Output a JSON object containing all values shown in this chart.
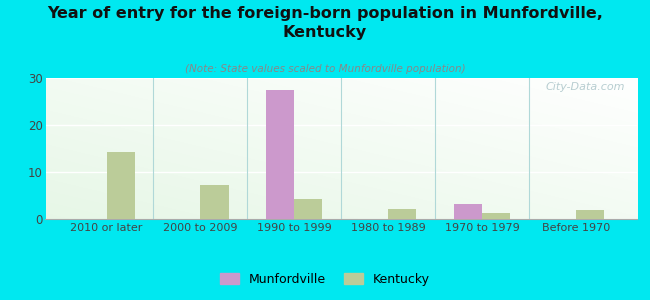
{
  "title": "Year of entry for the foreign-born population in Munfordville,\nKentucky",
  "subtitle": "(Note: State values scaled to Munfordville population)",
  "categories": [
    "2010 or later",
    "2000 to 2009",
    "1990 to 1999",
    "1980 to 1989",
    "1970 to 1979",
    "Before 1970"
  ],
  "munfordville": [
    0,
    0,
    27.5,
    0,
    3.2,
    0
  ],
  "kentucky": [
    14.2,
    7.2,
    4.2,
    2.2,
    1.2,
    2.0
  ],
  "munfordville_color": "#cc99cc",
  "kentucky_color": "#bbcc99",
  "background_color": "#00e8f0",
  "ylim": [
    0,
    30
  ],
  "yticks": [
    0,
    10,
    20,
    30
  ],
  "bar_width": 0.3,
  "watermark": "City-Data.com"
}
